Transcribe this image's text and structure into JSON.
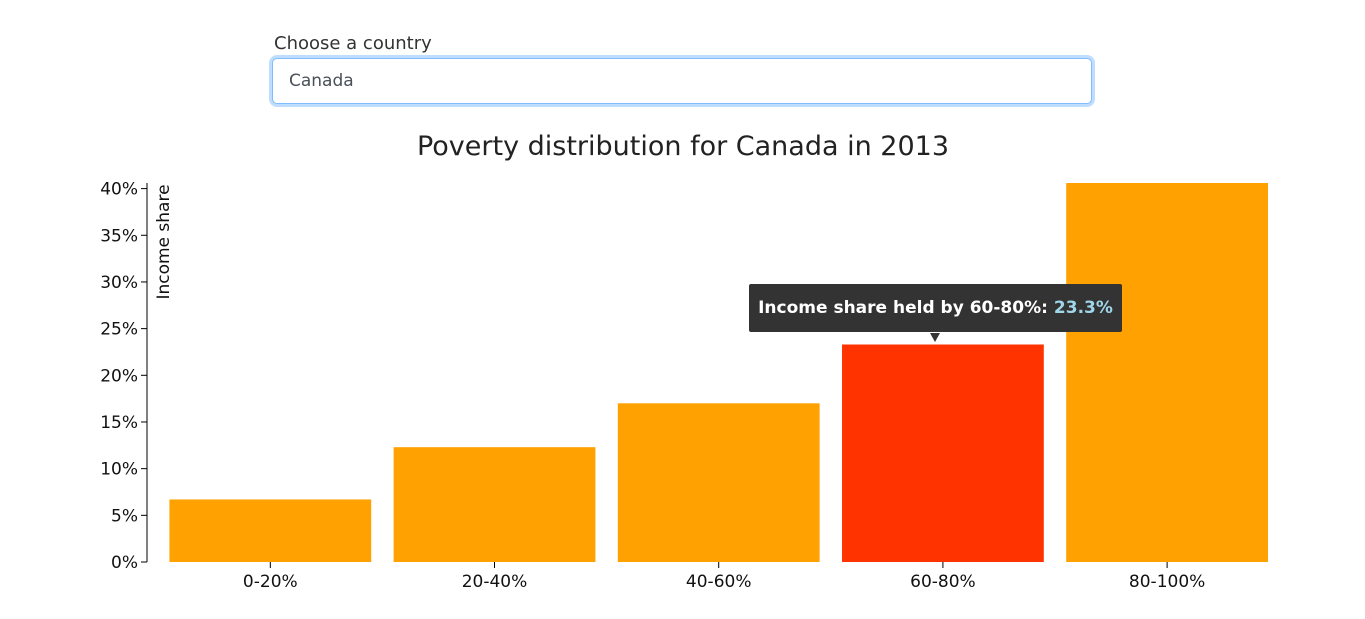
{
  "form": {
    "country_label": "Choose a country",
    "country_value": "Canada"
  },
  "chart_data": {
    "type": "bar",
    "title": "Poverty distribution for Canada in 2013",
    "xlabel": "",
    "ylabel": "Income share",
    "categories": [
      "0-20%",
      "20-40%",
      "40-60%",
      "60-80%",
      "80-100%"
    ],
    "values": [
      6.7,
      12.3,
      17.0,
      23.3,
      40.6
    ],
    "ylim": [
      0,
      40.6
    ],
    "yticks": [
      "0%",
      "5%",
      "10%",
      "15%",
      "20%",
      "25%",
      "30%",
      "35%",
      "40%"
    ],
    "highlighted_category": "60-80%",
    "colors": {
      "bar": "#ffa100",
      "highlight": "#ff3300"
    }
  },
  "tooltip": {
    "label": "Income share held by 60-80%:",
    "value": "23.3%"
  }
}
